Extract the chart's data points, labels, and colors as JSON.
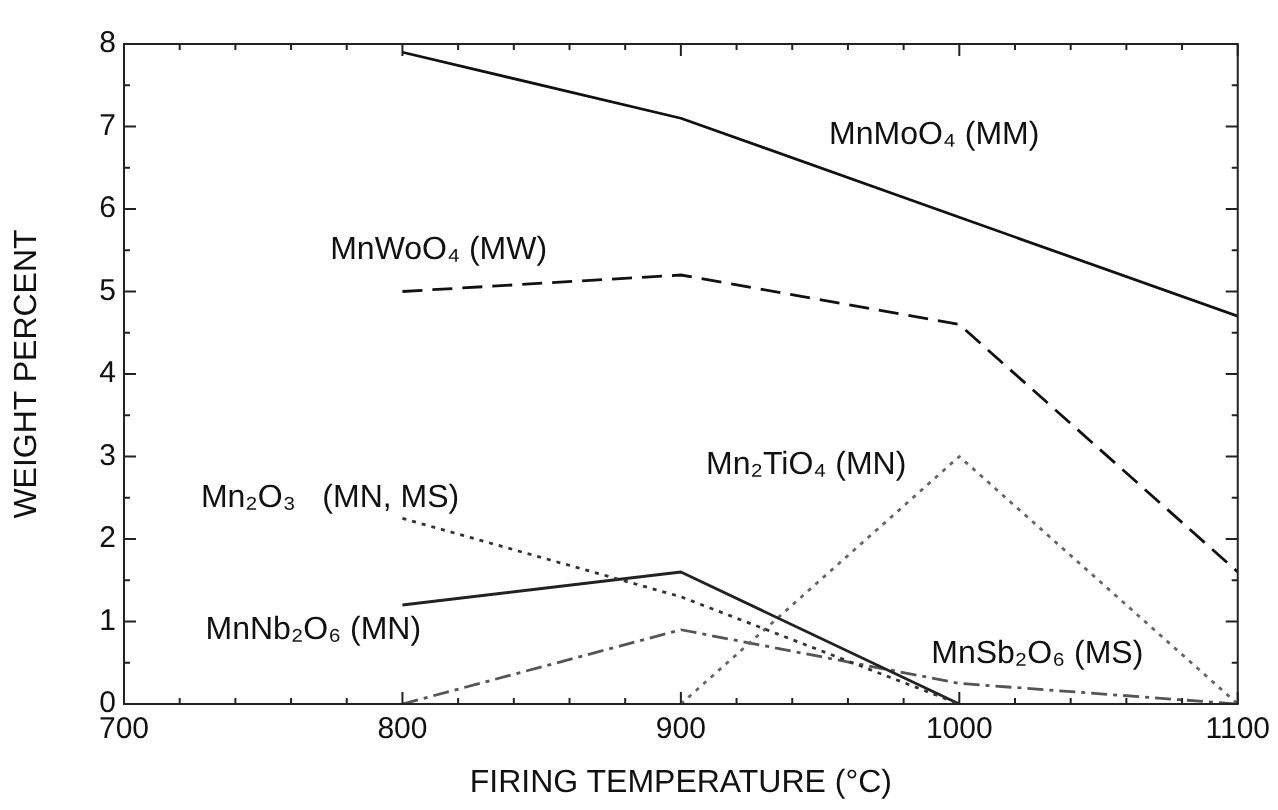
{
  "chart_data": {
    "type": "line",
    "xlabel": "FIRING TEMPERATURE (°C)",
    "ylabel": "WEIGHT PERCENT",
    "x": [
      800,
      900,
      1000,
      1100
    ],
    "series": [
      {
        "name": "MnMoO₄ (MM)",
        "color": "#111111",
        "line_style": "solid",
        "values": [
          7.9,
          7.1,
          5.9,
          4.7
        ]
      },
      {
        "name": "MnWoO₄ (MW)",
        "color": "#111111",
        "line_style": "dashed",
        "values": [
          5.0,
          5.2,
          4.6,
          1.6
        ]
      },
      {
        "name": "Mn₂O₃   (MN, MS)",
        "color": "#333333",
        "line_style": "dotted",
        "values": [
          2.25,
          1.3,
          0,
          null
        ]
      },
      {
        "name": "MnNb₂O₆ (MN)",
        "color": "#222222",
        "line_style": "solid",
        "values": [
          1.2,
          1.6,
          0,
          null
        ]
      },
      {
        "name": "Mn₂TiO₄ (MN)",
        "color": "#666666",
        "line_style": "dotted",
        "values": [
          null,
          0,
          3.0,
          0
        ]
      },
      {
        "name": "MnSb₂O₆ (MS)",
        "color": "#555555",
        "line_style": "dashdot",
        "values": [
          0,
          0.9,
          0.25,
          0
        ]
      }
    ],
    "xlim": [
      700,
      1100
    ],
    "xticks": [
      700,
      {
        "value": 720,
        "label": null
      },
      {
        "value": 740,
        "label": null
      },
      {
        "value": 760,
        "label": null
      },
      {
        "value": 780,
        "label": null
      },
      800,
      {
        "value": 820,
        "label": null
      },
      {
        "value": 840,
        "label": null
      },
      {
        "value": 860,
        "label": null
      },
      {
        "value": 880,
        "label": null
      },
      900,
      {
        "value": 920,
        "label": null
      },
      {
        "value": 940,
        "label": null
      },
      {
        "value": 960,
        "label": null
      },
      {
        "value": 980,
        "label": null
      },
      1000,
      {
        "value": 1020,
        "label": null
      },
      {
        "value": 1040,
        "label": null
      },
      {
        "value": 1060,
        "label": null
      },
      {
        "value": 1080,
        "label": null
      },
      1100
    ],
    "ylim": [
      0,
      8
    ],
    "yticks": [
      0,
      {
        "value": 0.5,
        "label": null
      },
      1,
      {
        "value": 1.5,
        "label": null
      },
      2,
      {
        "value": 2.5,
        "label": null
      },
      3,
      {
        "value": 3.5,
        "label": null
      },
      4,
      {
        "value": 4.5,
        "label": null
      },
      5,
      {
        "value": 5.5,
        "label": null
      },
      6,
      {
        "value": 6.5,
        "label": null
      },
      7,
      {
        "value": 7.5,
        "label": null
      },
      8
    ],
    "grid": false,
    "legend": false,
    "marker": "none"
  }
}
